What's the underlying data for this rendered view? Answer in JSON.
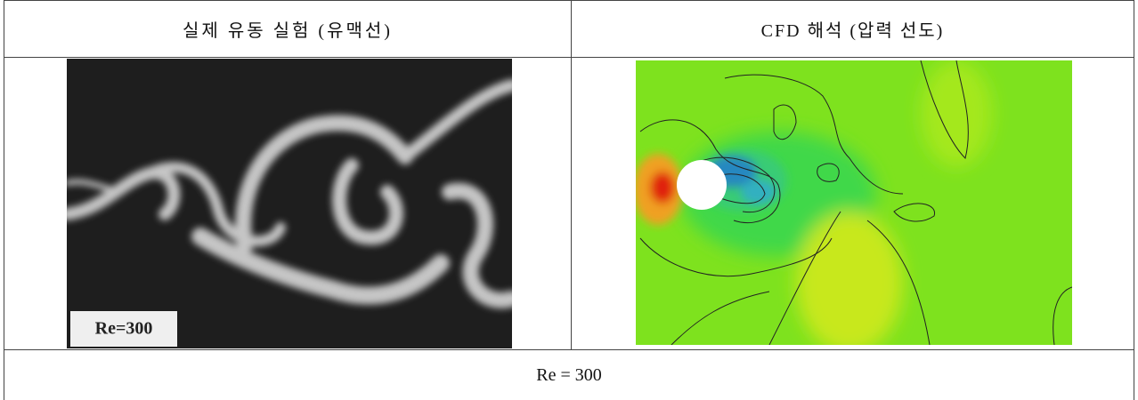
{
  "table": {
    "header": [
      "실제 유동 실험 (유맥선)",
      "CFD 해석 (압력 선도)"
    ],
    "photo_label": "Re=300",
    "footer": "Re = 300"
  }
}
